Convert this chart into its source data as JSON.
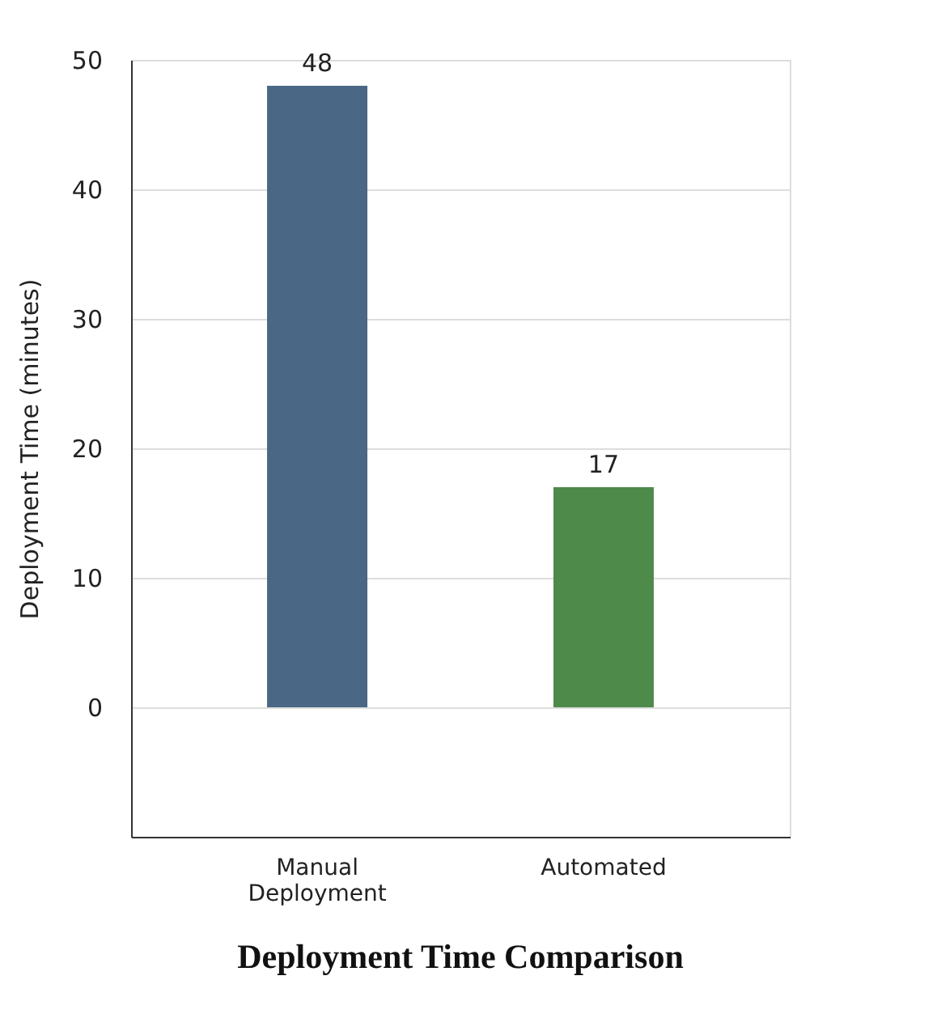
{
  "chart_data": {
    "type": "bar",
    "title": "Deployment Time Comparison",
    "ylabel": "Deployment Time (minutes)",
    "categories": [
      "Manual Deployment",
      "Automated"
    ],
    "values": [
      48,
      17
    ],
    "colors": [
      "#4a6885",
      "#4e8a4a"
    ],
    "ylim": [
      -10,
      50
    ],
    "yticks": [
      0,
      10,
      20,
      30,
      40,
      50
    ],
    "grid": "y",
    "data_labels": true
  }
}
